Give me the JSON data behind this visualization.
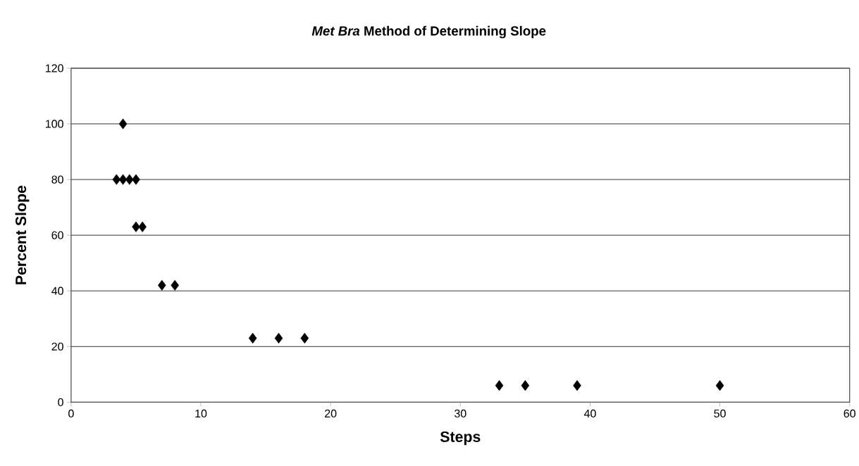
{
  "chart_data": {
    "type": "scatter",
    "title": "*Met Bra*  Method of Determining Slope",
    "xlabel": "Steps",
    "ylabel": "Percent Slope",
    "x": [
      4,
      3.5,
      4,
      4.5,
      5,
      5,
      5.5,
      7,
      8,
      14,
      16,
      18,
      33,
      35,
      39,
      50
    ],
    "values": [
      100,
      80,
      80,
      80,
      80,
      63,
      63,
      42,
      42,
      23,
      23,
      23,
      6,
      6,
      6,
      6
    ],
    "color": "#000000",
    "marker": "diamond",
    "xlim": [
      0,
      60
    ],
    "xticks": [
      0,
      10,
      20,
      30,
      40,
      50,
      60
    ],
    "ylim": [
      0,
      120
    ],
    "yticks": [
      0,
      20,
      40,
      60,
      80,
      100,
      120
    ],
    "grid": "y"
  }
}
